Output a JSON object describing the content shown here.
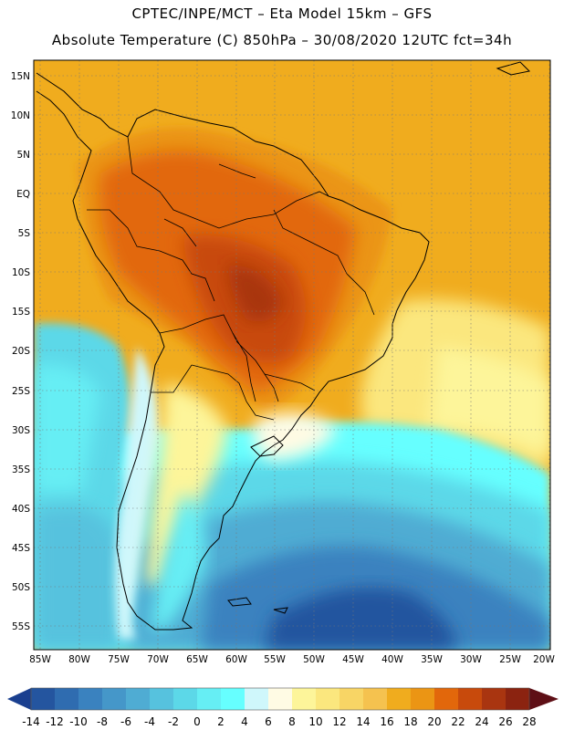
{
  "header": {
    "line1": "CPTEC/INPE/MCT –  Eta Model 15km – GFS",
    "line2": "Absolute Temperature (C) 850hPa – 30/08/2020 12UTC fct=34h"
  },
  "map": {
    "lat_labels": [
      "15N",
      "10N",
      "5N",
      "EQ",
      "5S",
      "10S",
      "15S",
      "20S",
      "25S",
      "30S",
      "35S",
      "40S",
      "45S",
      "50S",
      "55S"
    ],
    "lon_labels": [
      "85W",
      "80W",
      "75W",
      "70W",
      "65W",
      "60W",
      "55W",
      "50W",
      "45W",
      "40W",
      "35W",
      "30W",
      "25W",
      "20W"
    ]
  },
  "colorbar": {
    "ticks": [
      "-14",
      "-12",
      "-10",
      "-8",
      "-6",
      "-4",
      "-2",
      "0",
      "2",
      "4",
      "6",
      "8",
      "10",
      "12",
      "14",
      "16",
      "18",
      "20",
      "22",
      "24",
      "26",
      "28"
    ],
    "colors": [
      "#1a3f8f",
      "#24559f",
      "#2f6cb0",
      "#3a82bf",
      "#4597c9",
      "#4facd3",
      "#56c2de",
      "#5cd8e8",
      "#66eef4",
      "#66ffff",
      "#cff7fb",
      "#fffbe4",
      "#fdf59a",
      "#fbe77e",
      "#f8d565",
      "#f5c24f",
      "#f0ac1e",
      "#eb9514",
      "#e2670b",
      "#c84a0c",
      "#a93510",
      "#8b2310",
      "#5e0f16"
    ]
  }
}
